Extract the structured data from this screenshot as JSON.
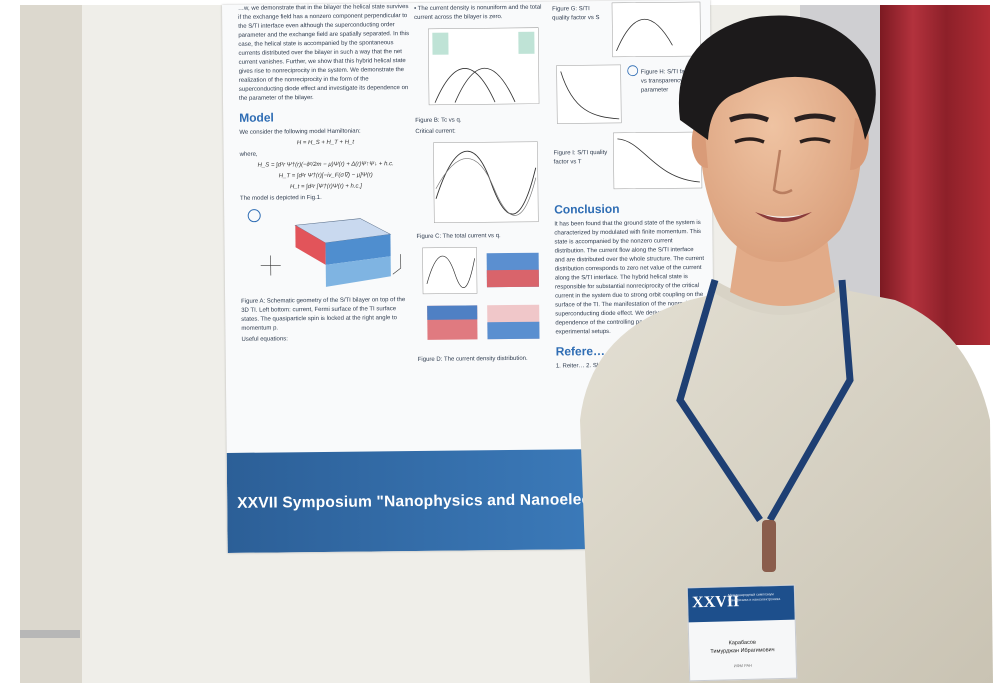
{
  "poster": {
    "col1_paragraph": "…w, we demonstrate that in the bilayer the helical state survives if the exchange field has a nonzero component perpendicular to the S/TI interface even although the superconducting order parameter and the exchange field are spatially separated. In this case, the helical state is accompanied by the spontaneous currents distributed over the bilayer in such a way that the net current vanishes. Further, we show that this hybrid helical state gives rise to nonreciprocity in the system. We demonstrate the realization of the nonreciprocity in the form of the superconducting diode effect and investigate its dependence on the parameter of the bilayer.",
    "model_heading": "Model",
    "model_intro": "We consider the following model Hamiltonian:",
    "hamiltonian": "H = H_S + H_T + H_t",
    "where": "where,",
    "hs": "H_S = ∫d³r Ψ†(r)(−∂²/2m − μ)Ψ(r) + Δ(r)Ψ↑Ψ↓ + h.c.",
    "ht": "H_T = ∫d²r Ψ†(r)[−iv_F(σ∇) − μ]Ψ(r)",
    "htun": "H_t = ∫d²r [Ψ†(r)Ψ(r) + h.c.]",
    "model_fig": "The model is depicted in Fig.1.",
    "figA_caption": "Figure A: Schematic geometry of the S/TI bilayer on top of the 3D TI. Left bottom: current, Fermi surface of the TI surface states. The quasiparticle spin is locked at the right angle to momentum p.",
    "useful_eq": "Useful equations:",
    "col2_bullet": "• The current density is nonuniform and the total current across the bilayer is zero.",
    "figB_caption": "Figure B: Tc vs q.",
    "critical_current": "Critical current:",
    "figC_caption": "Figure C: The total current vs q.",
    "figD_caption": "Figure D: The current density distribution.",
    "col3_fig_a": "Figure G: S/TI quality factor vs S",
    "col3_fig_b": "Figure H: S/TI factor vs transparency parameter",
    "col3_fig_c": "Figure I: S/TI quality factor vs T",
    "conclusion_heading": "Conclusion",
    "conclusion_text": "It has been found that the ground state of the system is characterized by modulated with finite momentum. This state is accompanied by the nonzero current distribution. The current flow along the S/TI interface and are distributed over the whole structure. The current distribution corresponds to zero net value of the current along the S/TI interface. The hybrid helical state is responsible for substantial nonreciprocity of the critical current in the system due to strong orbit coupling on the surface of the TI. The manifestation of the nonreciprocity superconducting diode effect. We derived important dependence of the controlling parameters of the experimental setups.",
    "references_heading": "Refere…",
    "references_text": "1. Reiter… 2. Shafro… Nature… 3. Karab… Neuro…",
    "banner": "XXVII Symposium \"Nanophysics and Nanoelectronics\""
  },
  "badge": {
    "number": "XXVII",
    "subtitle": "Международный симпозиум Нанофизика и наноэлектроника",
    "surname": "Карабасов",
    "name": "Тимурджан Ибрагимович",
    "org": "ИФМ РАН"
  },
  "colors": {
    "poster_blue": "#2f6db4",
    "banner_blue": "#3a78b7",
    "curtain_red": "#a52a34",
    "sweater": "#dcd7c8",
    "lanyard": "#1e3f73"
  }
}
